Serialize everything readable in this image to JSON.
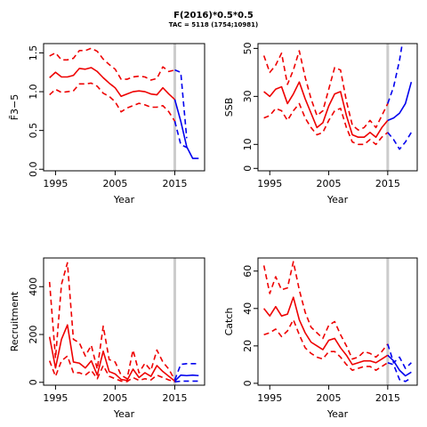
{
  "figure": {
    "title": "F(2016)*0.5*0.5",
    "subtitle": "TAC = 5118 (1754;10981)"
  },
  "colors": {
    "historical": "#ee0000",
    "projection": "#0000ee",
    "current_year_line": "#cccccc"
  },
  "chart_data": [
    {
      "id": "fbar",
      "type": "line",
      "xlabel": "Year",
      "ylabel": "F̄3−5",
      "xlim": [
        1993,
        2020
      ],
      "ylim": [
        -0.02,
        1.62
      ],
      "xticks": [
        1995,
        2005,
        2015
      ],
      "yticks": [
        0.0,
        0.5,
        1.0,
        1.5
      ],
      "ytick_labels": [
        "0.0",
        "0.5",
        "1.0",
        "1.5"
      ],
      "vline": 2015,
      "series": [
        {
          "kind": "historical",
          "style": "solid",
          "x": [
            1994,
            1995,
            1996,
            1997,
            1998,
            1999,
            2000,
            2001,
            2002,
            2003,
            2004,
            2005,
            2006,
            2007,
            2008,
            2009,
            2010,
            2011,
            2012,
            2013,
            2014,
            2015
          ],
          "y": [
            1.18,
            1.25,
            1.19,
            1.19,
            1.21,
            1.3,
            1.29,
            1.31,
            1.26,
            1.18,
            1.11,
            1.05,
            0.94,
            0.97,
            1.0,
            1.01,
            1.0,
            0.97,
            0.96,
            1.05,
            0.97,
            0.9
          ]
        },
        {
          "kind": "historical",
          "style": "dashed",
          "x": [
            1994,
            1995,
            1996,
            1997,
            1998,
            1999,
            2000,
            2001,
            2002,
            2003,
            2004,
            2005,
            2006,
            2007,
            2008,
            2009,
            2010,
            2011,
            2012,
            2013,
            2014,
            2015
          ],
          "y": [
            1.46,
            1.5,
            1.41,
            1.41,
            1.43,
            1.53,
            1.53,
            1.56,
            1.52,
            1.42,
            1.35,
            1.29,
            1.16,
            1.16,
            1.19,
            1.2,
            1.19,
            1.15,
            1.17,
            1.32,
            1.26,
            1.28
          ]
        },
        {
          "kind": "historical",
          "style": "dashed",
          "x": [
            1994,
            1995,
            1996,
            1997,
            1998,
            1999,
            2000,
            2001,
            2002,
            2003,
            2004,
            2005,
            2006,
            2007,
            2008,
            2009,
            2010,
            2011,
            2012,
            2013,
            2014,
            2015
          ],
          "y": [
            0.96,
            1.03,
            0.99,
            1.0,
            1.01,
            1.1,
            1.1,
            1.11,
            1.07,
            0.98,
            0.94,
            0.87,
            0.74,
            0.79,
            0.82,
            0.85,
            0.83,
            0.8,
            0.8,
            0.82,
            0.74,
            0.62
          ]
        },
        {
          "kind": "projection",
          "style": "solid",
          "x": [
            2015,
            2016,
            2017,
            2018,
            2019
          ],
          "y": [
            0.9,
            0.62,
            0.29,
            0.14,
            0.14
          ]
        },
        {
          "kind": "projection",
          "style": "dashed",
          "x": [
            2015,
            2016,
            2017
          ],
          "y": [
            1.28,
            1.25,
            0.4
          ]
        },
        {
          "kind": "projection",
          "style": "dashed",
          "x": [
            2015,
            2016,
            2017
          ],
          "y": [
            0.62,
            0.32,
            0.28
          ]
        }
      ]
    },
    {
      "id": "ssb",
      "type": "line",
      "xlabel": "Year",
      "ylabel": "SSB",
      "xlim": [
        1993,
        2020
      ],
      "ylim": [
        -1,
        52
      ],
      "xticks": [
        1995,
        2005,
        2015
      ],
      "yticks": [
        0,
        10,
        30,
        50
      ],
      "ytick_labels": [
        "0",
        "10",
        "30",
        "50"
      ],
      "vline": 2015,
      "series": [
        {
          "kind": "historical",
          "style": "solid",
          "x": [
            1994,
            1995,
            1996,
            1997,
            1998,
            1999,
            2000,
            2001,
            2002,
            2003,
            2004,
            2005,
            2006,
            2007,
            2008,
            2009,
            2010,
            2011,
            2012,
            2013,
            2014,
            2015
          ],
          "y": [
            32,
            30,
            33,
            34,
            27,
            31,
            36,
            29,
            23,
            17,
            19,
            26,
            31,
            32,
            22,
            14,
            13,
            13,
            15,
            13,
            17,
            20
          ]
        },
        {
          "kind": "historical",
          "style": "dashed",
          "x": [
            1994,
            1995,
            1996,
            1997,
            1998,
            1999,
            2000,
            2001,
            2002,
            2003,
            2004,
            2005,
            2006,
            2007,
            2008,
            2009,
            2010,
            2011,
            2012,
            2013,
            2014,
            2015
          ],
          "y": [
            47,
            40,
            43,
            48,
            35,
            41,
            49,
            38,
            29,
            22,
            24,
            33,
            42,
            41,
            28,
            18,
            16,
            17,
            20,
            17,
            22,
            27
          ]
        },
        {
          "kind": "historical",
          "style": "dashed",
          "x": [
            1994,
            1995,
            1996,
            1997,
            1998,
            1999,
            2000,
            2001,
            2002,
            2003,
            2004,
            2005,
            2006,
            2007,
            2008,
            2009,
            2010,
            2011,
            2012,
            2013,
            2014,
            2015
          ],
          "y": [
            21,
            22,
            25,
            24,
            20,
            24,
            27,
            21,
            17,
            14,
            15,
            20,
            24,
            25,
            17,
            11,
            10,
            10,
            12,
            10,
            13,
            15
          ]
        },
        {
          "kind": "projection",
          "style": "solid",
          "x": [
            2015,
            2016,
            2017,
            2018,
            2019
          ],
          "y": [
            20,
            21,
            23,
            27,
            36
          ]
        },
        {
          "kind": "projection",
          "style": "dashed",
          "x": [
            2015,
            2016,
            2017,
            2018
          ],
          "y": [
            27,
            34,
            45,
            60
          ]
        },
        {
          "kind": "projection",
          "style": "dashed",
          "x": [
            2015,
            2016,
            2017,
            2018,
            2019
          ],
          "y": [
            15,
            12,
            8,
            11,
            15
          ]
        }
      ]
    },
    {
      "id": "recruitment",
      "type": "line",
      "xlabel": "Year",
      "ylabel": "Recruitment",
      "xlim": [
        1993,
        2020
      ],
      "ylim": [
        -12,
        520
      ],
      "xticks": [
        1995,
        2005,
        2015
      ],
      "yticks": [
        0,
        200,
        400
      ],
      "ytick_labels": [
        "0",
        "200",
        "400"
      ],
      "vline": 2015,
      "series": [
        {
          "kind": "historical",
          "style": "solid",
          "x": [
            1994,
            1995,
            1996,
            1997,
            1998,
            1999,
            2000,
            2001,
            2002,
            2003,
            2004,
            2005,
            2006,
            2007,
            2008,
            2009,
            2010,
            2011,
            2012,
            2013,
            2014,
            2015
          ],
          "y": [
            190,
            60,
            180,
            240,
            85,
            80,
            60,
            90,
            30,
            130,
            45,
            35,
            12,
            8,
            55,
            20,
            40,
            25,
            70,
            45,
            25,
            5
          ]
        },
        {
          "kind": "historical",
          "style": "dashed",
          "x": [
            1994,
            1995,
            1996,
            1997,
            1998,
            1999,
            2000,
            2001,
            2002,
            2003,
            2004,
            2005,
            2006,
            2007,
            2008,
            2009,
            2010,
            2011,
            2012,
            2013,
            2014,
            2015
          ],
          "y": [
            420,
            100,
            410,
            500,
            180,
            165,
            110,
            155,
            55,
            235,
            95,
            85,
            30,
            15,
            135,
            40,
            80,
            50,
            135,
            85,
            55,
            10
          ]
        },
        {
          "kind": "historical",
          "style": "dashed",
          "x": [
            1994,
            1995,
            1996,
            1997,
            1998,
            1999,
            2000,
            2001,
            2002,
            2003,
            2004,
            2005,
            2006,
            2007,
            2008,
            2009,
            2010,
            2011,
            2012,
            2013,
            2014,
            2015
          ],
          "y": [
            90,
            25,
            90,
            110,
            40,
            40,
            30,
            50,
            15,
            70,
            25,
            15,
            5,
            3,
            20,
            8,
            15,
            10,
            30,
            20,
            10,
            2
          ]
        },
        {
          "kind": "projection",
          "style": "solid",
          "x": [
            2015,
            2016,
            2017,
            2018,
            2019
          ],
          "y": [
            5,
            30,
            28,
            30,
            28
          ]
        },
        {
          "kind": "projection",
          "style": "dashed",
          "x": [
            2015,
            2016,
            2017,
            2018,
            2019
          ],
          "y": [
            10,
            75,
            78,
            78,
            78
          ]
        },
        {
          "kind": "projection",
          "style": "dashed",
          "x": [
            2015,
            2016,
            2017,
            2018,
            2019
          ],
          "y": [
            2,
            5,
            5,
            5,
            5
          ]
        }
      ]
    },
    {
      "id": "catch",
      "type": "line",
      "xlabel": "Year",
      "ylabel": "Catch",
      "xlim": [
        1993,
        2020
      ],
      "ylim": [
        -1,
        67
      ],
      "xticks": [
        1995,
        2005,
        2015
      ],
      "yticks": [
        0,
        20,
        40,
        60
      ],
      "ytick_labels": [
        "0",
        "20",
        "40",
        "60"
      ],
      "vline": 2015,
      "series": [
        {
          "kind": "historical",
          "style": "solid",
          "x": [
            1994,
            1995,
            1996,
            1997,
            1998,
            1999,
            2000,
            2001,
            2002,
            2003,
            2004,
            2005,
            2006,
            2007,
            2008,
            2009,
            2010,
            2011,
            2012,
            2013,
            2014,
            2015
          ],
          "y": [
            40,
            36,
            41,
            36,
            37,
            46,
            34,
            27,
            22,
            20,
            18,
            23,
            24,
            19,
            15,
            10,
            11,
            12,
            12,
            11,
            13,
            15
          ]
        },
        {
          "kind": "historical",
          "style": "dashed",
          "x": [
            1994,
            1995,
            1996,
            1997,
            1998,
            1999,
            2000,
            2001,
            2002,
            2003,
            2004,
            2005,
            2006,
            2007,
            2008,
            2009,
            2010,
            2011,
            2012,
            2013,
            2014,
            2015
          ],
          "y": [
            63,
            48,
            57,
            50,
            51,
            65,
            50,
            38,
            30,
            27,
            24,
            31,
            33,
            26,
            20,
            13,
            14,
            17,
            16,
            14,
            17,
            21
          ]
        },
        {
          "kind": "historical",
          "style": "dashed",
          "x": [
            1994,
            1995,
            1996,
            1997,
            1998,
            1999,
            2000,
            2001,
            2002,
            2003,
            2004,
            2005,
            2006,
            2007,
            2008,
            2009,
            2010,
            2011,
            2012,
            2013,
            2014,
            2015
          ],
          "y": [
            26,
            27,
            29,
            25,
            28,
            34,
            26,
            19,
            16,
            14,
            13,
            17,
            17,
            14,
            10,
            7,
            8,
            9,
            9,
            7,
            9,
            11
          ]
        },
        {
          "kind": "projection",
          "style": "solid",
          "x": [
            2015,
            2016,
            2017,
            2018,
            2019
          ],
          "y": [
            15,
            12,
            7,
            4,
            6
          ]
        },
        {
          "kind": "projection",
          "style": "dashed",
          "x": [
            2015,
            2016,
            2017,
            2018,
            2019
          ],
          "y": [
            21,
            11,
            14,
            8,
            11
          ]
        },
        {
          "kind": "projection",
          "style": "dashed",
          "x": [
            2015,
            2016,
            2017,
            2018,
            2019
          ],
          "y": [
            11,
            10,
            2,
            1,
            3
          ]
        }
      ]
    }
  ]
}
